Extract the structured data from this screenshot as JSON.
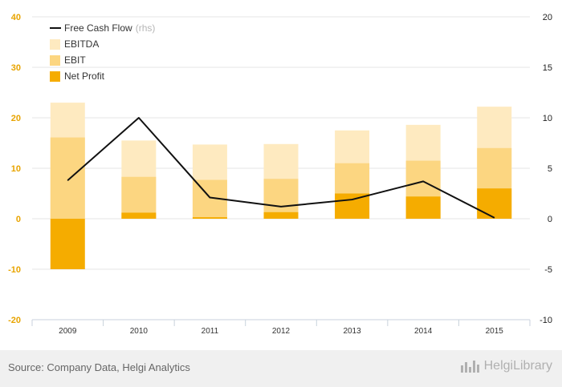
{
  "chart_data": {
    "type": "bar",
    "stacked": true,
    "categories": [
      "2009",
      "2010",
      "2011",
      "2012",
      "2013",
      "2014",
      "2015"
    ],
    "series": [
      {
        "name": "Net Profit",
        "values": [
          -10,
          1.2,
          0.3,
          1.3,
          5.0,
          4.4,
          6.0
        ],
        "color": "#f5ac00"
      },
      {
        "name": "EBIT",
        "values": [
          16.1,
          8.3,
          7.7,
          7.9,
          11.0,
          11.5,
          14.0
        ],
        "color": "#fcd681"
      },
      {
        "name": "EBITDA",
        "values": [
          23.0,
          15.5,
          14.7,
          14.8,
          17.5,
          18.6,
          22.2
        ],
        "color": "#feeac0"
      }
    ],
    "line_series": {
      "name": "Free Cash Flow",
      "suffix": "(rhs)",
      "axis": "right",
      "values": [
        3.8,
        10.0,
        2.1,
        1.2,
        1.9,
        3.7,
        0.1
      ],
      "color": "#111111"
    },
    "ylim_left": [
      -20,
      40
    ],
    "yticks_left": [
      "40",
      "30",
      "20",
      "10",
      "0",
      "-10",
      "-20"
    ],
    "ylim_right": [
      -10,
      20
    ],
    "yticks_right": [
      "20",
      "15",
      "10",
      "5",
      "0",
      "-5",
      "-10"
    ],
    "grid": true,
    "legend_position": "top-left"
  },
  "legend": [
    {
      "label": "Free Cash Flow",
      "suffix": "(rhs)",
      "kind": "line",
      "color": "#111111"
    },
    {
      "label": "EBITDA",
      "suffix": "",
      "kind": "box",
      "color": "#feeac0"
    },
    {
      "label": "EBIT",
      "suffix": "",
      "kind": "box",
      "color": "#fcd681"
    },
    {
      "label": "Net Profit",
      "suffix": "",
      "kind": "box",
      "color": "#f5ac00"
    }
  ],
  "footer": {
    "source": "Source: Company Data, Helgi Analytics",
    "logo": "HelgiLibrary",
    "logo_icon": "chart-bars-icon"
  }
}
